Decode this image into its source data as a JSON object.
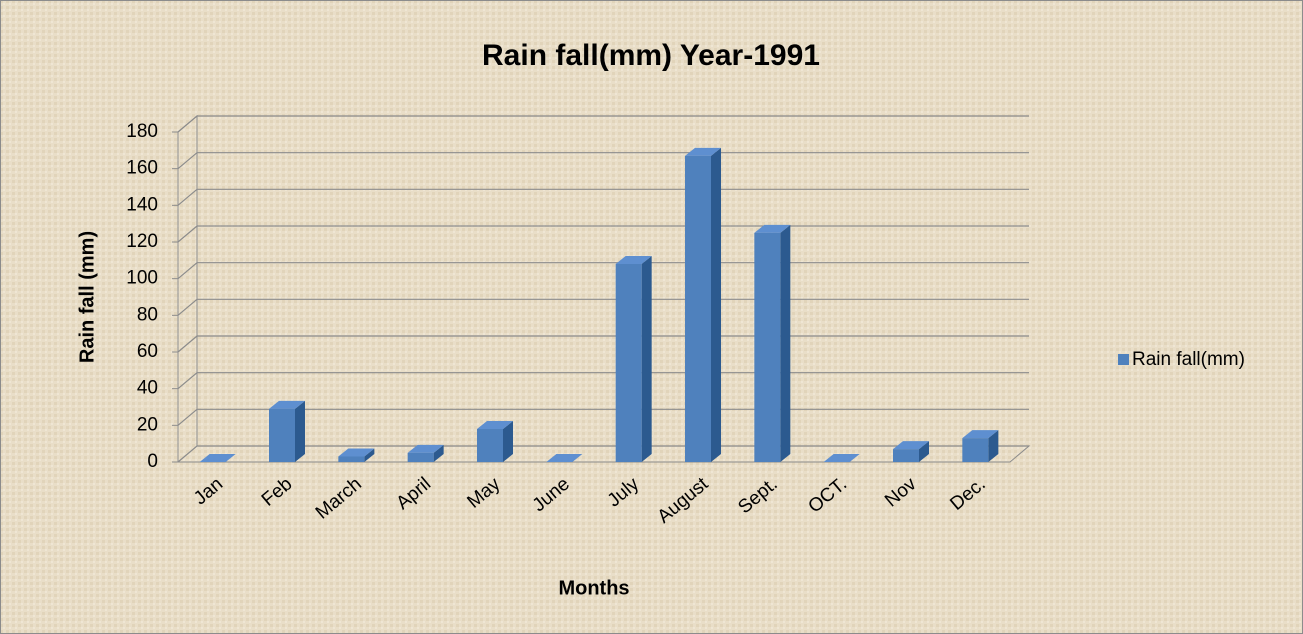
{
  "chart_data": {
    "type": "bar",
    "title": "Rain fall(mm) Year-1991",
    "x_label": "Months",
    "y_label": "Rain fall (mm)",
    "categories": [
      "Jan",
      "Feb",
      "March",
      "April",
      "May",
      "June",
      "July",
      "August",
      "Sept.",
      "OCT.",
      "Nov",
      "Dec."
    ],
    "series": [
      {
        "name": "Rain fall(mm)",
        "color": "#4f81bd",
        "values": [
          0,
          29,
          3,
          5,
          18,
          0,
          108,
          167,
          125,
          0,
          7,
          13
        ]
      }
    ],
    "ylim": [
      0,
      180
    ],
    "yticks": [
      0,
      20,
      40,
      60,
      80,
      100,
      120,
      140,
      160,
      180
    ],
    "grid": true,
    "legend": "right"
  }
}
